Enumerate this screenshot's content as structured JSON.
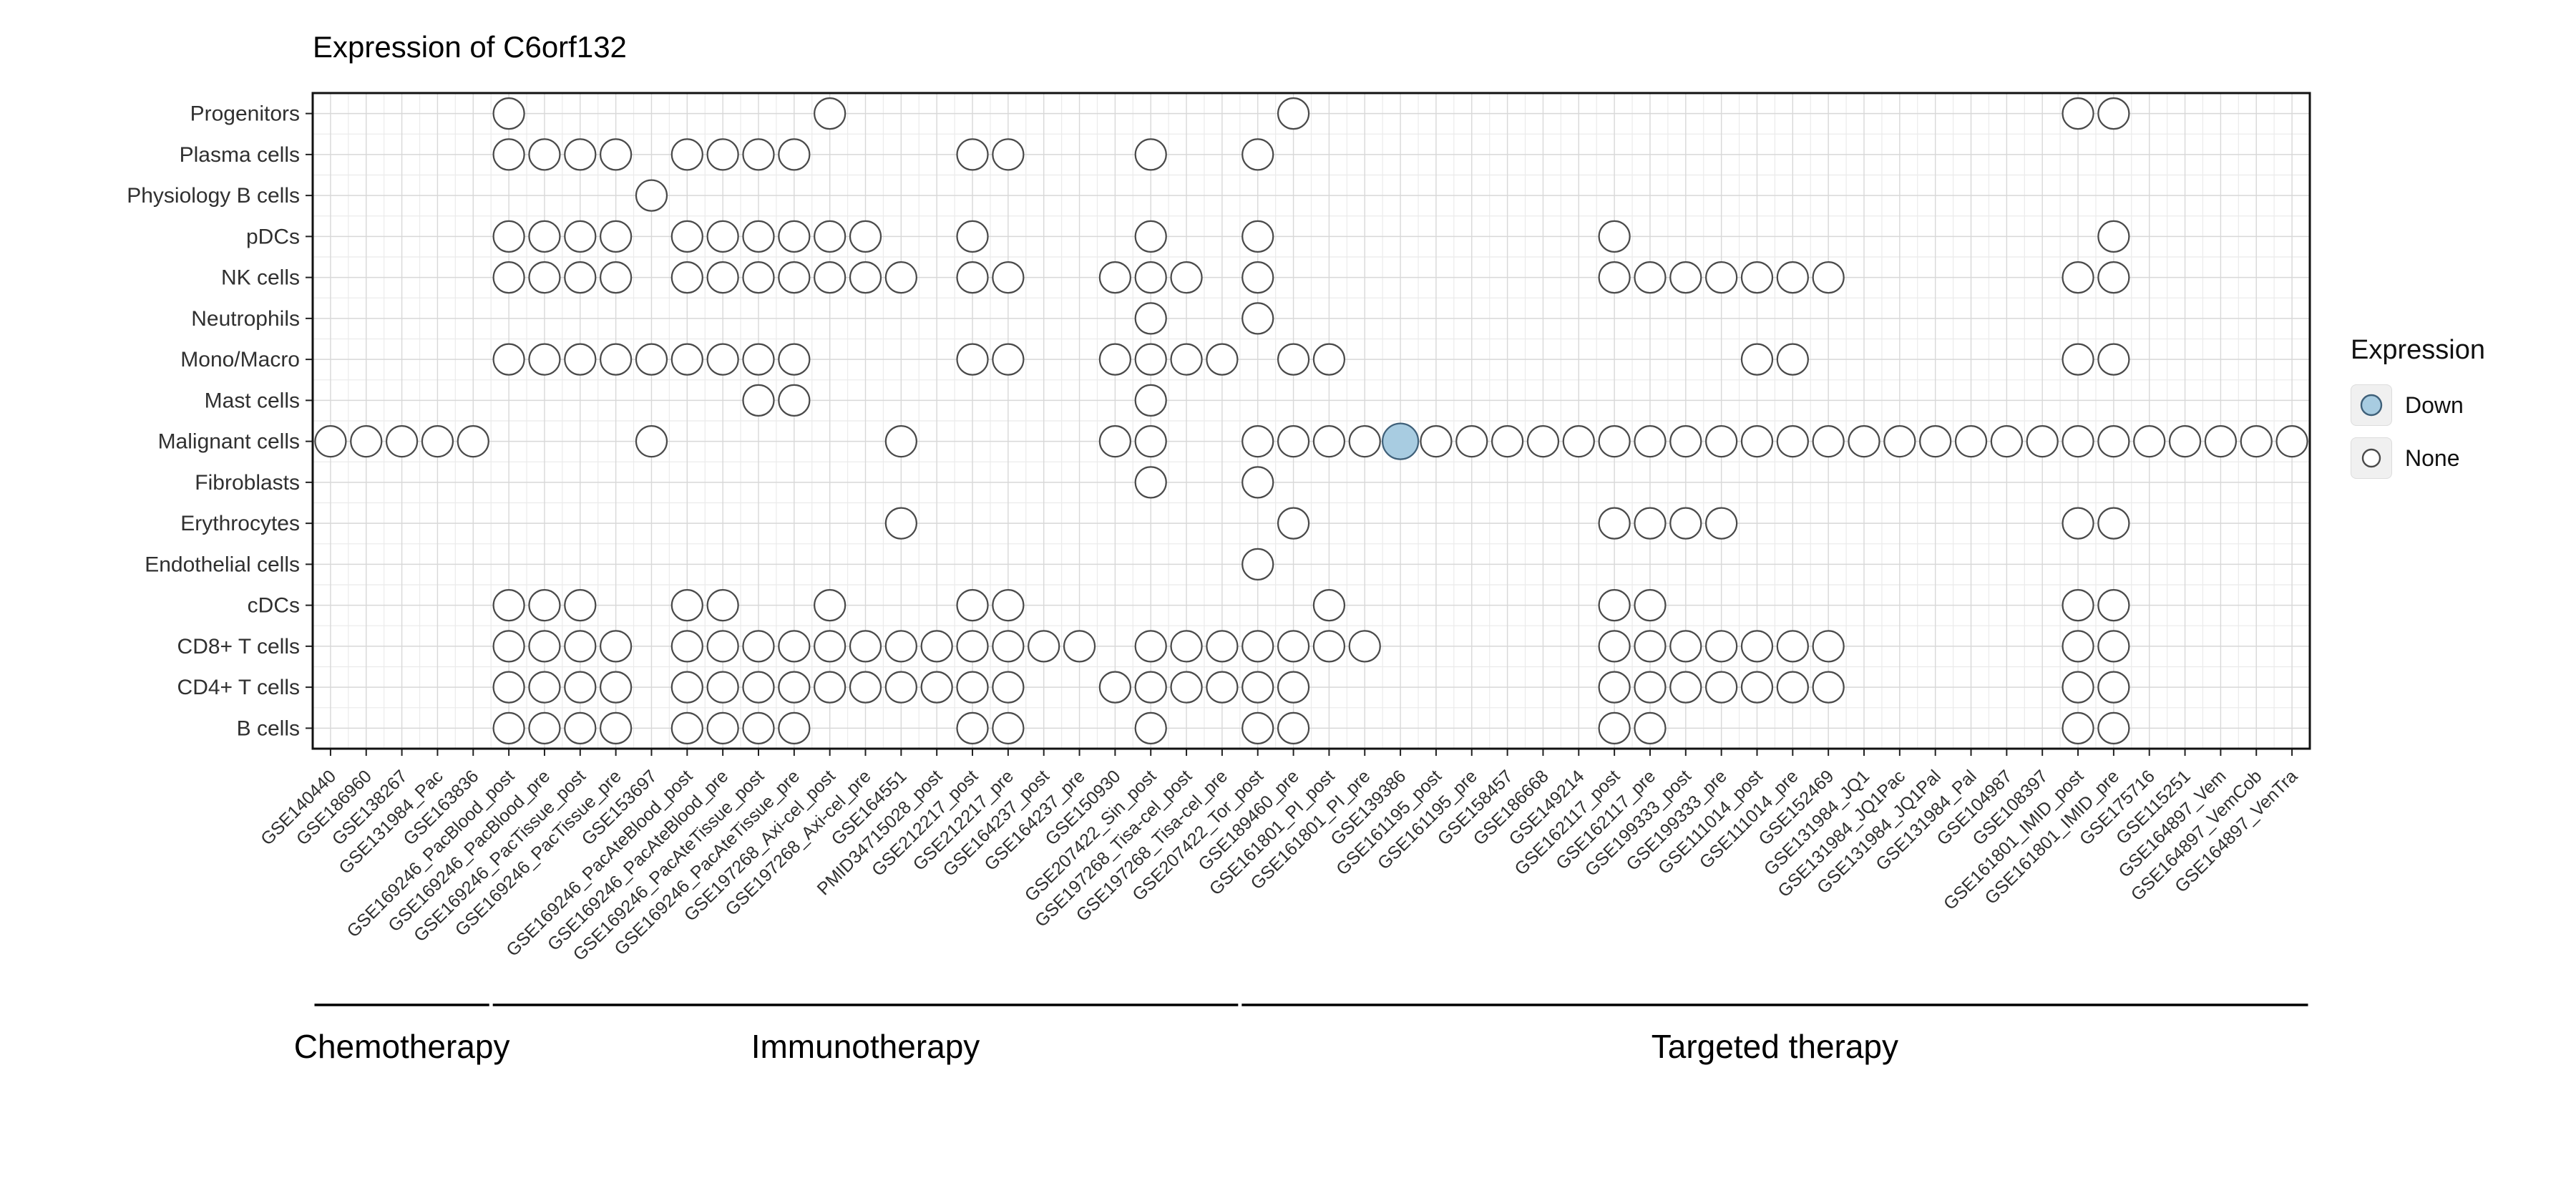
{
  "title": "Expression of C6orf132",
  "legend": {
    "title": "Expression",
    "items": [
      {
        "label": "Down",
        "fill": "#a8cce1"
      },
      {
        "label": "None",
        "fill": "#ffffff"
      }
    ]
  },
  "colors": {
    "dot_stroke": "#4a4a4a",
    "down_stroke": "#3f6079",
    "down_fill": "#a8cce1",
    "none_fill": "#ffffff",
    "grid_major": "#d8d8d8",
    "grid_minor": "#ebebeb",
    "panel_border": "#111111",
    "axis_text": "#303030",
    "tick": "#222222",
    "group_line": "#000000"
  },
  "chart_data": {
    "type": "dot-matrix",
    "title": "Expression of C6orf132",
    "legend_title": "Expression",
    "legend_values": [
      "Down",
      "None"
    ],
    "rows": [
      "Progenitors",
      "Plasma cells",
      "Physiology B cells",
      "pDCs",
      "NK cells",
      "Neutrophils",
      "Mono/Macro",
      "Mast cells",
      "Malignant cells",
      "Fibroblasts",
      "Erythrocytes",
      "Endothelial cells",
      "cDCs",
      "CD8+ T cells",
      "CD4+ T cells",
      "B cells"
    ],
    "columns": [
      "GSE140440",
      "GSE186960",
      "GSE138267",
      "GSE131984_Pac",
      "GSE163836",
      "GSE169246_PacBlood_post",
      "GSE169246_PacBlood_pre",
      "GSE169246_PacTissue_post",
      "GSE169246_PacTissue_pre",
      "GSE153697",
      "GSE169246_PacAteBlood_post",
      "GSE169246_PacAteBlood_pre",
      "GSE169246_PacAteTissue_post",
      "GSE169246_PacAteTissue_pre",
      "GSE197268_Axi-cel_post",
      "GSE197268_Axi-cel_pre",
      "GSE164551",
      "PMID34715028_post",
      "GSE212217_post",
      "GSE212217_pre",
      "GSE164237_post",
      "GSE164237_pre",
      "GSE150930",
      "GSE207422_Sin_post",
      "GSE197268_Tisa-cel_post",
      "GSE197268_Tisa-cel_pre",
      "GSE207422_Tor_post",
      "GSE189460_pre",
      "GSE161801_PI_post",
      "GSE161801_PI_pre",
      "GSE139386",
      "GSE161195_post",
      "GSE161195_pre",
      "GSE158457",
      "GSE186668",
      "GSE149214",
      "GSE162117_post",
      "GSE162117_pre",
      "GSE199333_post",
      "GSE199333_pre",
      "GSE111014_post",
      "GSE111014_pre",
      "GSE152469",
      "GSE131984_JQ1",
      "GSE131984_JQ1Pac",
      "GSE131984_JQ1Pal",
      "GSE131984_Pal",
      "GSE104987",
      "GSE108397",
      "GSE161801_IMID_post",
      "GSE161801_IMID_pre",
      "GSE175716",
      "GSE115251",
      "GSE164897_Vem",
      "GSE164897_VemCob",
      "GSE164897_VenTra"
    ],
    "groups": [
      {
        "label": "Chemotherapy",
        "start": 0,
        "end": 4
      },
      {
        "label": "Immunotherapy",
        "start": 5,
        "end": 25
      },
      {
        "label": "Targeted therapy",
        "start": 26,
        "end": 55
      }
    ],
    "points": {
      "Progenitors": [
        5,
        14,
        27,
        49,
        50
      ],
      "Plasma cells": [
        5,
        6,
        7,
        8,
        10,
        11,
        12,
        13,
        18,
        19,
        23,
        26
      ],
      "Physiology B cells": [
        9
      ],
      "pDCs": [
        5,
        6,
        7,
        8,
        10,
        11,
        12,
        13,
        14,
        15,
        18,
        23,
        26,
        36,
        50
      ],
      "NK cells": [
        5,
        6,
        7,
        8,
        10,
        11,
        12,
        13,
        14,
        15,
        16,
        18,
        19,
        22,
        23,
        24,
        26,
        36,
        37,
        38,
        39,
        40,
        41,
        42,
        49,
        50
      ],
      "Neutrophils": [
        23,
        26
      ],
      "Mono/Macro": [
        5,
        6,
        7,
        8,
        9,
        10,
        11,
        12,
        13,
        18,
        19,
        22,
        23,
        24,
        25,
        27,
        28,
        40,
        41,
        49,
        50
      ],
      "Mast cells": [
        12,
        13,
        23
      ],
      "Malignant cells": [
        0,
        1,
        2,
        3,
        4,
        9,
        16,
        22,
        23,
        26,
        27,
        28,
        29,
        30,
        31,
        32,
        33,
        34,
        35,
        36,
        37,
        38,
        39,
        40,
        41,
        42,
        43,
        44,
        45,
        46,
        47,
        48,
        49,
        50,
        51,
        52,
        53,
        54,
        55
      ],
      "Fibroblasts": [
        23,
        26
      ],
      "Erythrocytes": [
        16,
        27,
        36,
        37,
        38,
        39,
        49,
        50
      ],
      "Endothelial cells": [
        26
      ],
      "cDCs": [
        5,
        6,
        7,
        10,
        11,
        14,
        18,
        19,
        28,
        36,
        37,
        49,
        50
      ],
      "CD8+ T cells": [
        5,
        6,
        7,
        8,
        10,
        11,
        12,
        13,
        14,
        15,
        16,
        17,
        18,
        19,
        20,
        21,
        23,
        24,
        25,
        26,
        27,
        28,
        29,
        36,
        37,
        38,
        39,
        40,
        41,
        42,
        49,
        50
      ],
      "CD4+ T cells": [
        5,
        6,
        7,
        8,
        10,
        11,
        12,
        13,
        14,
        15,
        16,
        17,
        18,
        19,
        22,
        23,
        24,
        25,
        26,
        27,
        36,
        37,
        38,
        39,
        40,
        41,
        42,
        49,
        50
      ],
      "B cells": [
        5,
        6,
        7,
        8,
        10,
        11,
        12,
        13,
        18,
        19,
        23,
        26,
        27,
        36,
        37,
        49,
        50
      ]
    },
    "down_cells": [
      {
        "row": "Malignant cells",
        "column": "GSE139386",
        "col_index": 30,
        "value": "Down"
      }
    ]
  }
}
